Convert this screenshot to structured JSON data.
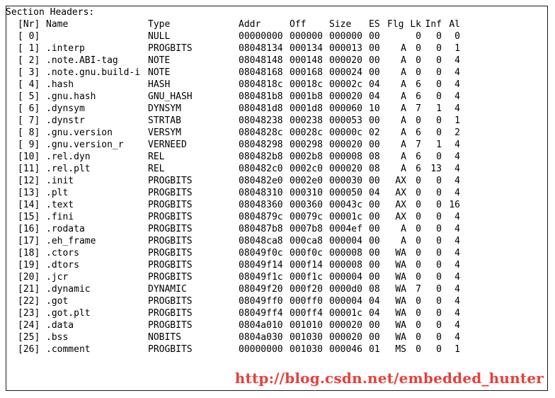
{
  "title": "Section Headers:",
  "columns": {
    "nr": "[Nr]",
    "name": "Name",
    "type": "Type",
    "addr": "Addr",
    "off": "Off",
    "size": "Size",
    "es": "ES",
    "flg": "Flg",
    "lk": "Lk",
    "inf": "Inf",
    "al": "Al"
  },
  "sections": [
    {
      "nr": "[ 0]",
      "name": "",
      "type": "NULL",
      "addr": "00000000",
      "off": "000000",
      "size": "000000",
      "es": "00",
      "flg": "",
      "lk": "0",
      "inf": "0",
      "al": "0"
    },
    {
      "nr": "[ 1]",
      "name": ".interp",
      "type": "PROGBITS",
      "addr": "08048134",
      "off": "000134",
      "size": "000013",
      "es": "00",
      "flg": "A",
      "lk": "0",
      "inf": "0",
      "al": "1"
    },
    {
      "nr": "[ 2]",
      "name": ".note.ABI-tag",
      "type": "NOTE",
      "addr": "08048148",
      "off": "000148",
      "size": "000020",
      "es": "00",
      "flg": "A",
      "lk": "0",
      "inf": "0",
      "al": "4"
    },
    {
      "nr": "[ 3]",
      "name": ".note.gnu.build-i",
      "type": "NOTE",
      "addr": "08048168",
      "off": "000168",
      "size": "000024",
      "es": "00",
      "flg": "A",
      "lk": "0",
      "inf": "0",
      "al": "4"
    },
    {
      "nr": "[ 4]",
      "name": ".hash",
      "type": "HASH",
      "addr": "0804818c",
      "off": "00018c",
      "size": "00002c",
      "es": "04",
      "flg": "A",
      "lk": "6",
      "inf": "0",
      "al": "4"
    },
    {
      "nr": "[ 5]",
      "name": ".gnu.hash",
      "type": "GNU_HASH",
      "addr": "080481b8",
      "off": "0001b8",
      "size": "000020",
      "es": "04",
      "flg": "A",
      "lk": "6",
      "inf": "0",
      "al": "4"
    },
    {
      "nr": "[ 6]",
      "name": ".dynsym",
      "type": "DYNSYM",
      "addr": "080481d8",
      "off": "0001d8",
      "size": "000060",
      "es": "10",
      "flg": "A",
      "lk": "7",
      "inf": "1",
      "al": "4"
    },
    {
      "nr": "[ 7]",
      "name": ".dynstr",
      "type": "STRTAB",
      "addr": "08048238",
      "off": "000238",
      "size": "000053",
      "es": "00",
      "flg": "A",
      "lk": "0",
      "inf": "0",
      "al": "1"
    },
    {
      "nr": "[ 8]",
      "name": ".gnu.version",
      "type": "VERSYM",
      "addr": "0804828c",
      "off": "00028c",
      "size": "00000c",
      "es": "02",
      "flg": "A",
      "lk": "6",
      "inf": "0",
      "al": "2"
    },
    {
      "nr": "[ 9]",
      "name": ".gnu.version_r",
      "type": "VERNEED",
      "addr": "08048298",
      "off": "000298",
      "size": "000020",
      "es": "00",
      "flg": "A",
      "lk": "7",
      "inf": "1",
      "al": "4"
    },
    {
      "nr": "[10]",
      "name": ".rel.dyn",
      "type": "REL",
      "addr": "080482b8",
      "off": "0002b8",
      "size": "000008",
      "es": "08",
      "flg": "A",
      "lk": "6",
      "inf": "0",
      "al": "4"
    },
    {
      "nr": "[11]",
      "name": ".rel.plt",
      "type": "REL",
      "addr": "080482c0",
      "off": "0002c0",
      "size": "000020",
      "es": "08",
      "flg": "A",
      "lk": "6",
      "inf": "13",
      "al": "4"
    },
    {
      "nr": "[12]",
      "name": ".init",
      "type": "PROGBITS",
      "addr": "080482e0",
      "off": "0002e0",
      "size": "000030",
      "es": "00",
      "flg": "AX",
      "lk": "0",
      "inf": "0",
      "al": "4"
    },
    {
      "nr": "[13]",
      "name": ".plt",
      "type": "PROGBITS",
      "addr": "08048310",
      "off": "000310",
      "size": "000050",
      "es": "04",
      "flg": "AX",
      "lk": "0",
      "inf": "0",
      "al": "4"
    },
    {
      "nr": "[14]",
      "name": ".text",
      "type": "PROGBITS",
      "addr": "08048360",
      "off": "000360",
      "size": "00043c",
      "es": "00",
      "flg": "AX",
      "lk": "0",
      "inf": "0",
      "al": "16"
    },
    {
      "nr": "[15]",
      "name": ".fini",
      "type": "PROGBITS",
      "addr": "0804879c",
      "off": "00079c",
      "size": "00001c",
      "es": "00",
      "flg": "AX",
      "lk": "0",
      "inf": "0",
      "al": "4"
    },
    {
      "nr": "[16]",
      "name": ".rodata",
      "type": "PROGBITS",
      "addr": "080487b8",
      "off": "0007b8",
      "size": "0004ef",
      "es": "00",
      "flg": "A",
      "lk": "0",
      "inf": "0",
      "al": "4"
    },
    {
      "nr": "[17]",
      "name": ".eh_frame",
      "type": "PROGBITS",
      "addr": "08048ca8",
      "off": "000ca8",
      "size": "000004",
      "es": "00",
      "flg": "A",
      "lk": "0",
      "inf": "0",
      "al": "4"
    },
    {
      "nr": "[18]",
      "name": ".ctors",
      "type": "PROGBITS",
      "addr": "08049f0c",
      "off": "000f0c",
      "size": "000008",
      "es": "00",
      "flg": "WA",
      "lk": "0",
      "inf": "0",
      "al": "4"
    },
    {
      "nr": "[19]",
      "name": ".dtors",
      "type": "PROGBITS",
      "addr": "08049f14",
      "off": "000f14",
      "size": "000008",
      "es": "00",
      "flg": "WA",
      "lk": "0",
      "inf": "0",
      "al": "4"
    },
    {
      "nr": "[20]",
      "name": ".jcr",
      "type": "PROGBITS",
      "addr": "08049f1c",
      "off": "000f1c",
      "size": "000004",
      "es": "00",
      "flg": "WA",
      "lk": "0",
      "inf": "0",
      "al": "4"
    },
    {
      "nr": "[21]",
      "name": ".dynamic",
      "type": "DYNAMIC",
      "addr": "08049f20",
      "off": "000f20",
      "size": "0000d0",
      "es": "08",
      "flg": "WA",
      "lk": "7",
      "inf": "0",
      "al": "4"
    },
    {
      "nr": "[22]",
      "name": ".got",
      "type": "PROGBITS",
      "addr": "08049ff0",
      "off": "000ff0",
      "size": "000004",
      "es": "04",
      "flg": "WA",
      "lk": "0",
      "inf": "0",
      "al": "4"
    },
    {
      "nr": "[23]",
      "name": ".got.plt",
      "type": "PROGBITS",
      "addr": "08049ff4",
      "off": "000ff4",
      "size": "00001c",
      "es": "04",
      "flg": "WA",
      "lk": "0",
      "inf": "0",
      "al": "4"
    },
    {
      "nr": "[24]",
      "name": ".data",
      "type": "PROGBITS",
      "addr": "0804a010",
      "off": "001010",
      "size": "000020",
      "es": "00",
      "flg": "WA",
      "lk": "0",
      "inf": "0",
      "al": "4"
    },
    {
      "nr": "[25]",
      "name": ".bss",
      "type": "NOBITS",
      "addr": "0804a030",
      "off": "001030",
      "size": "000020",
      "es": "00",
      "flg": "WA",
      "lk": "0",
      "inf": "0",
      "al": "4"
    },
    {
      "nr": "[26]",
      "name": ".comment",
      "type": "PROGBITS",
      "addr": "00000000",
      "off": "001030",
      "size": "000046",
      "es": "01",
      "flg": "MS",
      "lk": "0",
      "inf": "0",
      "al": "1"
    }
  ],
  "watermark": "http://blog.csdn.net/embedded_hunter",
  "colors": {
    "watermark": "#e8403a",
    "text": "#000000",
    "border": "#1a1a1a"
  }
}
